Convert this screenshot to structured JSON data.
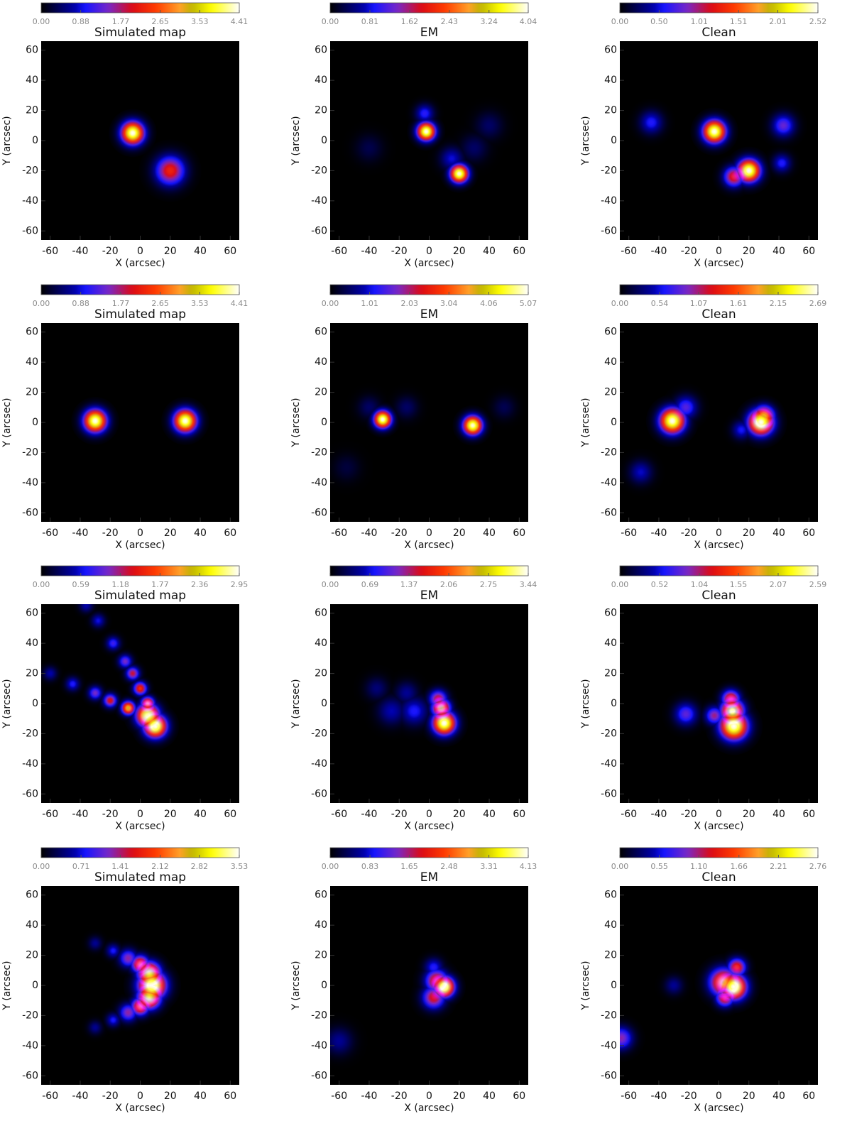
{
  "chart_data": [
    {
      "type": "heatmap",
      "title": "Simulated map",
      "xlabel": "X (arcsec)",
      "ylabel": "Y (arcsec)",
      "xlim": [
        -66,
        66
      ],
      "ylim": [
        -66,
        66
      ],
      "xticks": [
        -60,
        -40,
        -20,
        0,
        20,
        40,
        60
      ],
      "yticks": [
        -60,
        -40,
        -20,
        0,
        20,
        40,
        60
      ],
      "clim": [
        0,
        4.41
      ],
      "cticks": [
        {
          "value": 0,
          "label": "0.00"
        },
        0.88,
        1.77,
        2.65,
        3.53,
        4.41
      ],
      "sources": [
        {
          "x": -5,
          "y": 5,
          "r": 5,
          "value": 4.41
        },
        {
          "x": 20,
          "y": -20,
          "r": 6.5,
          "value": 2.3
        }
      ]
    },
    {
      "type": "heatmap",
      "title": "EM",
      "xlabel": "X (arcsec)",
      "ylabel": "Y (arcsec)",
      "xlim": [
        -66,
        66
      ],
      "ylim": [
        -66,
        66
      ],
      "xticks": [
        -60,
        -40,
        -20,
        0,
        20,
        40,
        60
      ],
      "yticks": [
        -60,
        -40,
        -20,
        0,
        20,
        40,
        60
      ],
      "clim": [
        0,
        4.04
      ],
      "cticks": [
        {
          "value": 0,
          "label": "0.00"
        },
        0.81,
        1.62,
        2.43,
        3.24,
        4.04
      ],
      "sources": [
        {
          "x": -2,
          "y": 6,
          "r": 4,
          "value": 4.04
        },
        {
          "x": 20,
          "y": -22,
          "r": 4,
          "value": 4
        },
        {
          "x": -3,
          "y": 18,
          "r": 4,
          "value": 1
        },
        {
          "x": 15,
          "y": -12,
          "r": 5,
          "value": 0.8
        },
        {
          "x": 40,
          "y": 10,
          "r": 6,
          "value": 0.4
        },
        {
          "x": -40,
          "y": -5,
          "r": 6,
          "value": 0.3
        },
        {
          "x": 30,
          "y": -5,
          "r": 6,
          "value": 0.4
        }
      ]
    },
    {
      "type": "heatmap",
      "title": "Clean",
      "xlabel": "X (arcsec)",
      "ylabel": "Y (arcsec)",
      "xlim": [
        -66,
        66
      ],
      "ylim": [
        -66,
        66
      ],
      "xticks": [
        -60,
        -40,
        -20,
        0,
        20,
        40,
        60
      ],
      "yticks": [
        -60,
        -40,
        -20,
        0,
        20,
        40,
        60
      ],
      "clim": [
        0,
        2.52
      ],
      "cticks": [
        {
          "value": 0,
          "label": "0.00"
        },
        {
          "value": 0.5,
          "label": "0.50"
        },
        1.01,
        1.51,
        2.01,
        2.52
      ],
      "sources": [
        {
          "x": -3,
          "y": 6,
          "r": 5,
          "value": 2.52
        },
        {
          "x": 20,
          "y": -20,
          "r": 5,
          "value": 2.52
        },
        {
          "x": 10,
          "y": -24,
          "r": 4.5,
          "value": 1.3
        },
        {
          "x": -45,
          "y": 12,
          "r": 5,
          "value": 0.6
        },
        {
          "x": 43,
          "y": 10,
          "r": 5,
          "value": 0.8
        },
        {
          "x": 42,
          "y": -15,
          "r": 4,
          "value": 0.6
        }
      ]
    },
    {
      "type": "heatmap",
      "title": "Simulated map",
      "xlabel": "X (arcsec)",
      "ylabel": "Y (arcsec)",
      "xlim": [
        -66,
        66
      ],
      "ylim": [
        -66,
        66
      ],
      "xticks": [
        -60,
        -40,
        -20,
        0,
        20,
        40,
        60
      ],
      "yticks": [
        -60,
        -40,
        -20,
        0,
        20,
        40,
        60
      ],
      "clim": [
        0,
        4.41
      ],
      "cticks": [
        {
          "value": 0,
          "label": "0.00"
        },
        0.88,
        1.77,
        2.65,
        3.53,
        4.41
      ],
      "sources": [
        {
          "x": -30,
          "y": 1,
          "r": 5,
          "value": 4.41
        },
        {
          "x": 30,
          "y": 1,
          "r": 5,
          "value": 4.41
        }
      ]
    },
    {
      "type": "heatmap",
      "title": "EM",
      "xlabel": "X (arcsec)",
      "ylabel": "Y (arcsec)",
      "xlim": [
        -66,
        66
      ],
      "ylim": [
        -66,
        66
      ],
      "xticks": [
        -60,
        -40,
        -20,
        0,
        20,
        40,
        60
      ],
      "yticks": [
        -60,
        -40,
        -20,
        0,
        20,
        40,
        60
      ],
      "clim": [
        0,
        5.07
      ],
      "cticks": [
        {
          "value": 0,
          "label": "0.00"
        },
        1.01,
        2.03,
        3.04,
        4.06,
        5.07
      ],
      "sources": [
        {
          "x": -31,
          "y": 2,
          "r": 3.8,
          "value": 5.07
        },
        {
          "x": 29,
          "y": -2,
          "r": 4.2,
          "value": 5
        },
        {
          "x": -40,
          "y": 10,
          "r": 5,
          "value": 0.5
        },
        {
          "x": -15,
          "y": 10,
          "r": 5,
          "value": 0.5
        },
        {
          "x": 50,
          "y": 10,
          "r": 5,
          "value": 0.4
        },
        {
          "x": -55,
          "y": -30,
          "r": 6,
          "value": 0.3
        }
      ]
    },
    {
      "type": "heatmap",
      "title": "Clean",
      "xlabel": "X (arcsec)",
      "ylabel": "Y (arcsec)",
      "xlim": [
        -66,
        66
      ],
      "ylim": [
        -66,
        66
      ],
      "xticks": [
        -60,
        -40,
        -20,
        0,
        20,
        40,
        60
      ],
      "yticks": [
        -60,
        -40,
        -20,
        0,
        20,
        40,
        60
      ],
      "clim": [
        0,
        2.69
      ],
      "cticks": [
        {
          "value": 0,
          "label": "0.00"
        },
        0.54,
        1.07,
        1.61,
        2.15,
        2.69
      ],
      "sources": [
        {
          "x": -31,
          "y": 1,
          "r": 5.5,
          "value": 2.69
        },
        {
          "x": 28,
          "y": 0,
          "r": 5.5,
          "value": 2.69
        },
        {
          "x": 30,
          "y": 4,
          "r": 4.5,
          "value": 2
        },
        {
          "x": -22,
          "y": 10,
          "r": 5,
          "value": 0.8
        },
        {
          "x": 15,
          "y": -5,
          "r": 4,
          "value": 0.6
        },
        {
          "x": -52,
          "y": -33,
          "r": 5,
          "value": 0.5
        }
      ]
    },
    {
      "type": "heatmap",
      "title": "Simulated map",
      "xlabel": "X (arcsec)",
      "ylabel": "Y (arcsec)",
      "xlim": [
        -66,
        66
      ],
      "ylim": [
        -66,
        66
      ],
      "xticks": [
        -60,
        -40,
        -20,
        0,
        20,
        40,
        60
      ],
      "yticks": [
        -60,
        -40,
        -20,
        0,
        20,
        40,
        60
      ],
      "clim": [
        0,
        2.95
      ],
      "cticks": [
        {
          "value": 0,
          "label": "0.00"
        },
        0.59,
        1.18,
        1.77,
        2.36,
        2.95
      ],
      "sources": [
        {
          "x": 10,
          "y": -15,
          "r": 5,
          "value": 2.95
        },
        {
          "x": 5,
          "y": -8,
          "r": 5,
          "value": 2.8
        },
        {
          "x": 5,
          "y": 0,
          "r": 3,
          "value": 2
        },
        {
          "x": 0,
          "y": 10,
          "r": 3,
          "value": 1.6
        },
        {
          "x": -5,
          "y": 20,
          "r": 3,
          "value": 1.3
        },
        {
          "x": -10,
          "y": 28,
          "r": 3,
          "value": 1
        },
        {
          "x": -18,
          "y": 40,
          "r": 3,
          "value": 0.8
        },
        {
          "x": -28,
          "y": 55,
          "r": 3,
          "value": 0.6
        },
        {
          "x": -36,
          "y": 65,
          "r": 3,
          "value": 0.5
        },
        {
          "x": -8,
          "y": -3,
          "r": 3,
          "value": 2.2
        },
        {
          "x": -20,
          "y": 2,
          "r": 3,
          "value": 1.4
        },
        {
          "x": -30,
          "y": 7,
          "r": 3,
          "value": 1
        },
        {
          "x": -45,
          "y": 13,
          "r": 3,
          "value": 0.7
        },
        {
          "x": -60,
          "y": 20,
          "r": 3,
          "value": 0.5
        }
      ]
    },
    {
      "type": "heatmap",
      "title": "EM",
      "xlabel": "X (arcsec)",
      "ylabel": "Y (arcsec)",
      "xlim": [
        -66,
        66
      ],
      "ylim": [
        -66,
        66
      ],
      "xticks": [
        -60,
        -40,
        -20,
        0,
        20,
        40,
        60
      ],
      "yticks": [
        -60,
        -40,
        -20,
        0,
        20,
        40,
        60
      ],
      "clim": [
        0,
        3.44
      ],
      "cticks": [
        {
          "value": 0,
          "label": "0.00"
        },
        0.69,
        1.37,
        2.06,
        2.75,
        3.44
      ],
      "sources": [
        {
          "x": 10,
          "y": -13,
          "r": 5,
          "value": 3.44
        },
        {
          "x": 8,
          "y": -3,
          "r": 4,
          "value": 2.6
        },
        {
          "x": 6,
          "y": 3,
          "r": 4,
          "value": 1.6
        },
        {
          "x": -10,
          "y": -5,
          "r": 6,
          "value": 0.8
        },
        {
          "x": -25,
          "y": -5,
          "r": 6,
          "value": 0.6
        },
        {
          "x": -15,
          "y": 7,
          "r": 5,
          "value": 0.5
        },
        {
          "x": -35,
          "y": 10,
          "r": 5,
          "value": 0.4
        }
      ]
    },
    {
      "type": "heatmap",
      "title": "Clean",
      "xlabel": "X (arcsec)",
      "ylabel": "Y (arcsec)",
      "xlim": [
        -66,
        66
      ],
      "ylim": [
        -66,
        66
      ],
      "xticks": [
        -60,
        -40,
        -20,
        0,
        20,
        40,
        60
      ],
      "yticks": [
        -60,
        -40,
        -20,
        0,
        20,
        40,
        60
      ],
      "clim": [
        0,
        2.59
      ],
      "cticks": [
        {
          "value": 0,
          "label": "0.00"
        },
        0.52,
        1.04,
        1.55,
        2.07,
        2.59
      ],
      "sources": [
        {
          "x": 10,
          "y": -15,
          "r": 6,
          "value": 2.59
        },
        {
          "x": 9,
          "y": -5,
          "r": 5,
          "value": 2.3
        },
        {
          "x": 8,
          "y": 3,
          "r": 4,
          "value": 1.5
        },
        {
          "x": -3,
          "y": -8,
          "r": 4,
          "value": 1
        },
        {
          "x": -22,
          "y": -7,
          "r": 5,
          "value": 0.8
        }
      ]
    },
    {
      "type": "heatmap",
      "title": "Simulated map",
      "xlabel": "X (arcsec)",
      "ylabel": "Y (arcsec)",
      "xlim": [
        -66,
        66
      ],
      "ylim": [
        -66,
        66
      ],
      "xticks": [
        -60,
        -40,
        -20,
        0,
        20,
        40,
        60
      ],
      "yticks": [
        -60,
        -40,
        -20,
        0,
        20,
        40,
        60
      ],
      "clim": [
        0,
        3.53
      ],
      "cticks": [
        {
          "value": 0,
          "label": "0.00"
        },
        0.71,
        1.41,
        2.12,
        2.82,
        3.53
      ],
      "sources": [
        {
          "x": 8,
          "y": 0,
          "r": 6,
          "value": 3.53
        },
        {
          "x": 6,
          "y": 8,
          "r": 5,
          "value": 3
        },
        {
          "x": 6,
          "y": -8,
          "r": 5,
          "value": 3
        },
        {
          "x": 0,
          "y": 14,
          "r": 4,
          "value": 2.2
        },
        {
          "x": 0,
          "y": -14,
          "r": 4,
          "value": 2.2
        },
        {
          "x": -8,
          "y": 18,
          "r": 4,
          "value": 1.3
        },
        {
          "x": -8,
          "y": -18,
          "r": 4,
          "value": 1.3
        },
        {
          "x": -18,
          "y": 23,
          "r": 3,
          "value": 0.8
        },
        {
          "x": -18,
          "y": -23,
          "r": 3,
          "value": 0.8
        },
        {
          "x": -30,
          "y": 28,
          "r": 3,
          "value": 0.5
        },
        {
          "x": -30,
          "y": -28,
          "r": 3,
          "value": 0.5
        }
      ]
    },
    {
      "type": "heatmap",
      "title": "EM",
      "xlabel": "X (arcsec)",
      "ylabel": "Y (arcsec)",
      "xlim": [
        -66,
        66
      ],
      "ylim": [
        -66,
        66
      ],
      "xticks": [
        -60,
        -40,
        -20,
        0,
        20,
        40,
        60
      ],
      "yticks": [
        -60,
        -40,
        -20,
        0,
        20,
        40,
        60
      ],
      "clim": [
        0,
        4.13
      ],
      "cticks": [
        {
          "value": 0,
          "label": "0.00"
        },
        0.83,
        1.65,
        2.48,
        3.31,
        4.13
      ],
      "sources": [
        {
          "x": 10,
          "y": -1,
          "r": 4.5,
          "value": 4.13
        },
        {
          "x": 5,
          "y": 3,
          "r": 5,
          "value": 2.3
        },
        {
          "x": 3,
          "y": -8,
          "r": 5,
          "value": 2
        },
        {
          "x": 3,
          "y": 12,
          "r": 4,
          "value": 1
        },
        {
          "x": -60,
          "y": -37,
          "r": 6,
          "value": 0.6
        }
      ]
    },
    {
      "type": "heatmap",
      "title": "Clean",
      "xlabel": "X (arcsec)",
      "ylabel": "Y (arcsec)",
      "xlim": [
        -66,
        66
      ],
      "ylim": [
        -66,
        66
      ],
      "xticks": [
        -60,
        -40,
        -20,
        0,
        20,
        40,
        60
      ],
      "yticks": [
        -60,
        -40,
        -20,
        0,
        20,
        40,
        60
      ],
      "clim": [
        0,
        2.76
      ],
      "cticks": [
        {
          "value": 0,
          "label": "0.00"
        },
        0.55,
        {
          "value": 1.1,
          "label": "1.10"
        },
        1.66,
        2.21,
        2.76
      ],
      "sources": [
        {
          "x": 10,
          "y": -1,
          "r": 5.5,
          "value": 2.76
        },
        {
          "x": 3,
          "y": 2,
          "r": 6,
          "value": 2
        },
        {
          "x": 12,
          "y": 12,
          "r": 4,
          "value": 1.5
        },
        {
          "x": 4,
          "y": -8,
          "r": 4,
          "value": 1.5
        },
        {
          "x": -65,
          "y": -35,
          "r": 5,
          "value": 1
        },
        {
          "x": -30,
          "y": 0,
          "r": 4,
          "value": 0.4
        }
      ]
    }
  ]
}
